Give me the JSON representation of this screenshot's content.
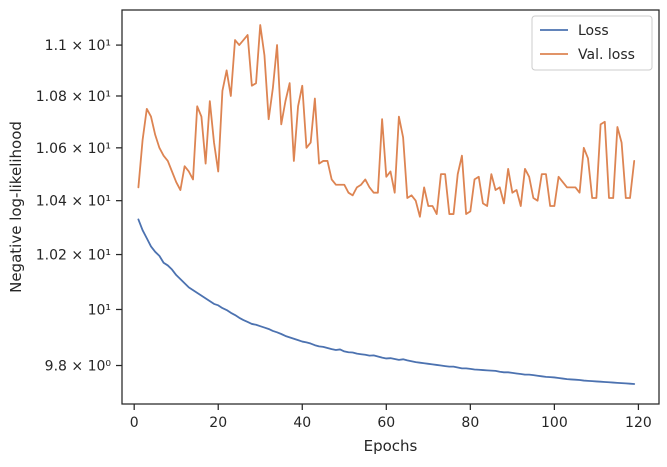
{
  "chart_data": {
    "type": "line",
    "title": "",
    "xlabel": "Epochs",
    "ylabel": "Negative log-likelihood",
    "xlim": [
      -2.9,
      124.9
    ],
    "ylim": [
      9.665,
      11.14
    ],
    "yscale": "log",
    "grid": false,
    "legend_position": "top-right",
    "x_ticks": [
      {
        "value": 0,
        "label": "0"
      },
      {
        "value": 20,
        "label": "20"
      },
      {
        "value": 40,
        "label": "40"
      },
      {
        "value": 60,
        "label": "60"
      },
      {
        "value": 80,
        "label": "80"
      },
      {
        "value": 100,
        "label": "100"
      },
      {
        "value": 120,
        "label": "120"
      }
    ],
    "y_ticks": [
      {
        "value": 9.8,
        "label": "9.8 × 10⁰"
      },
      {
        "value": 10.0,
        "label": "10¹"
      },
      {
        "value": 10.2,
        "label": "1.02 × 10¹"
      },
      {
        "value": 10.4,
        "label": "1.04 × 10¹"
      },
      {
        "value": 10.6,
        "label": "1.06 × 10¹"
      },
      {
        "value": 10.8,
        "label": "1.08 × 10¹"
      },
      {
        "value": 11.0,
        "label": "1.1 × 10¹"
      }
    ],
    "series": [
      {
        "name": "Loss",
        "color": "#4c72b0",
        "x": [
          1,
          2,
          3,
          4,
          5,
          6,
          7,
          8,
          9,
          10,
          11,
          12,
          13,
          14,
          15,
          16,
          17,
          18,
          19,
          20,
          21,
          22,
          23,
          24,
          25,
          26,
          27,
          28,
          29,
          30,
          31,
          32,
          33,
          34,
          35,
          36,
          37,
          38,
          39,
          40,
          41,
          42,
          43,
          44,
          45,
          46,
          47,
          48,
          49,
          50,
          51,
          52,
          53,
          54,
          55,
          56,
          57,
          58,
          59,
          60,
          61,
          62,
          63,
          64,
          65,
          66,
          67,
          68,
          69,
          70,
          71,
          72,
          73,
          74,
          75,
          76,
          77,
          78,
          79,
          80,
          81,
          82,
          83,
          84,
          85,
          86,
          87,
          88,
          89,
          90,
          91,
          92,
          93,
          94,
          95,
          96,
          97,
          98,
          99,
          100,
          101,
          102,
          103,
          104,
          105,
          106,
          107,
          108,
          109,
          110,
          111,
          112,
          113,
          114,
          115,
          116,
          117,
          118,
          119
        ],
        "y": [
          10.33,
          10.29,
          10.26,
          10.23,
          10.21,
          10.195,
          10.17,
          10.16,
          10.145,
          10.125,
          10.11,
          10.095,
          10.08,
          10.07,
          10.06,
          10.05,
          10.04,
          10.03,
          10.02,
          10.015,
          10.005,
          9.998,
          9.988,
          9.98,
          9.97,
          9.962,
          9.955,
          9.948,
          9.945,
          9.94,
          9.935,
          9.93,
          9.923,
          9.918,
          9.912,
          9.905,
          9.9,
          9.895,
          9.89,
          9.885,
          9.882,
          9.878,
          9.872,
          9.868,
          9.866,
          9.862,
          9.858,
          9.855,
          9.857,
          9.85,
          9.847,
          9.846,
          9.842,
          9.84,
          9.838,
          9.835,
          9.836,
          9.832,
          9.828,
          9.825,
          9.826,
          9.823,
          9.82,
          9.822,
          9.818,
          9.815,
          9.812,
          9.81,
          9.808,
          9.806,
          9.804,
          9.802,
          9.8,
          9.798,
          9.796,
          9.796,
          9.793,
          9.79,
          9.79,
          9.788,
          9.786,
          9.785,
          9.784,
          9.783,
          9.782,
          9.781,
          9.778,
          9.776,
          9.776,
          9.774,
          9.772,
          9.77,
          9.768,
          9.768,
          9.766,
          9.764,
          9.762,
          9.76,
          9.759,
          9.758,
          9.756,
          9.754,
          9.752,
          9.751,
          9.75,
          9.749,
          9.747,
          9.746,
          9.745,
          9.744,
          9.743,
          9.742,
          9.741,
          9.74,
          9.739,
          9.738,
          9.737,
          9.736,
          9.735
        ]
      },
      {
        "name": "Val. loss",
        "color": "#dd8452",
        "x": [
          1,
          2,
          3,
          4,
          5,
          6,
          7,
          8,
          9,
          10,
          11,
          12,
          13,
          14,
          15,
          16,
          17,
          18,
          19,
          20,
          21,
          22,
          23,
          24,
          25,
          26,
          27,
          28,
          29,
          30,
          31,
          32,
          33,
          34,
          35,
          36,
          37,
          38,
          39,
          40,
          41,
          42,
          43,
          44,
          45,
          46,
          47,
          48,
          49,
          50,
          51,
          52,
          53,
          54,
          55,
          56,
          57,
          58,
          59,
          60,
          61,
          62,
          63,
          64,
          65,
          66,
          67,
          68,
          69,
          70,
          71,
          72,
          73,
          74,
          75,
          76,
          77,
          78,
          79,
          80,
          81,
          82,
          83,
          84,
          85,
          86,
          87,
          88,
          89,
          90,
          91,
          92,
          93,
          94,
          95,
          96,
          97,
          98,
          99,
          100,
          101,
          102,
          103,
          104,
          105,
          106,
          107,
          108,
          109,
          110,
          111,
          112,
          113,
          114,
          115,
          116,
          117,
          118,
          119
        ],
        "y": [
          10.45,
          10.63,
          10.75,
          10.72,
          10.65,
          10.6,
          10.57,
          10.55,
          10.51,
          10.47,
          10.44,
          10.53,
          10.51,
          10.48,
          10.76,
          10.72,
          10.54,
          10.78,
          10.62,
          10.51,
          10.82,
          10.9,
          10.8,
          11.02,
          11.0,
          11.02,
          11.04,
          10.84,
          10.85,
          11.08,
          10.96,
          10.71,
          10.83,
          11.0,
          10.69,
          10.78,
          10.85,
          10.55,
          10.76,
          10.84,
          10.6,
          10.62,
          10.79,
          10.54,
          10.55,
          10.55,
          10.48,
          10.46,
          10.46,
          10.46,
          10.43,
          10.42,
          10.45,
          10.46,
          10.48,
          10.45,
          10.43,
          10.43,
          10.71,
          10.49,
          10.51,
          10.43,
          10.72,
          10.64,
          10.41,
          10.42,
          10.4,
          10.34,
          10.45,
          10.38,
          10.38,
          10.35,
          10.5,
          10.5,
          10.35,
          10.35,
          10.5,
          10.57,
          10.35,
          10.36,
          10.48,
          10.49,
          10.39,
          10.38,
          10.5,
          10.44,
          10.45,
          10.39,
          10.52,
          10.43,
          10.44,
          10.38,
          10.52,
          10.49,
          10.41,
          10.4,
          10.5,
          10.5,
          10.38,
          10.38,
          10.49,
          10.47,
          10.45,
          10.45,
          10.45,
          10.43,
          10.6,
          10.56,
          10.41,
          10.41,
          10.69,
          10.7,
          10.41,
          10.41,
          10.68,
          10.62,
          10.41,
          10.41,
          10.55
        ]
      }
    ]
  }
}
